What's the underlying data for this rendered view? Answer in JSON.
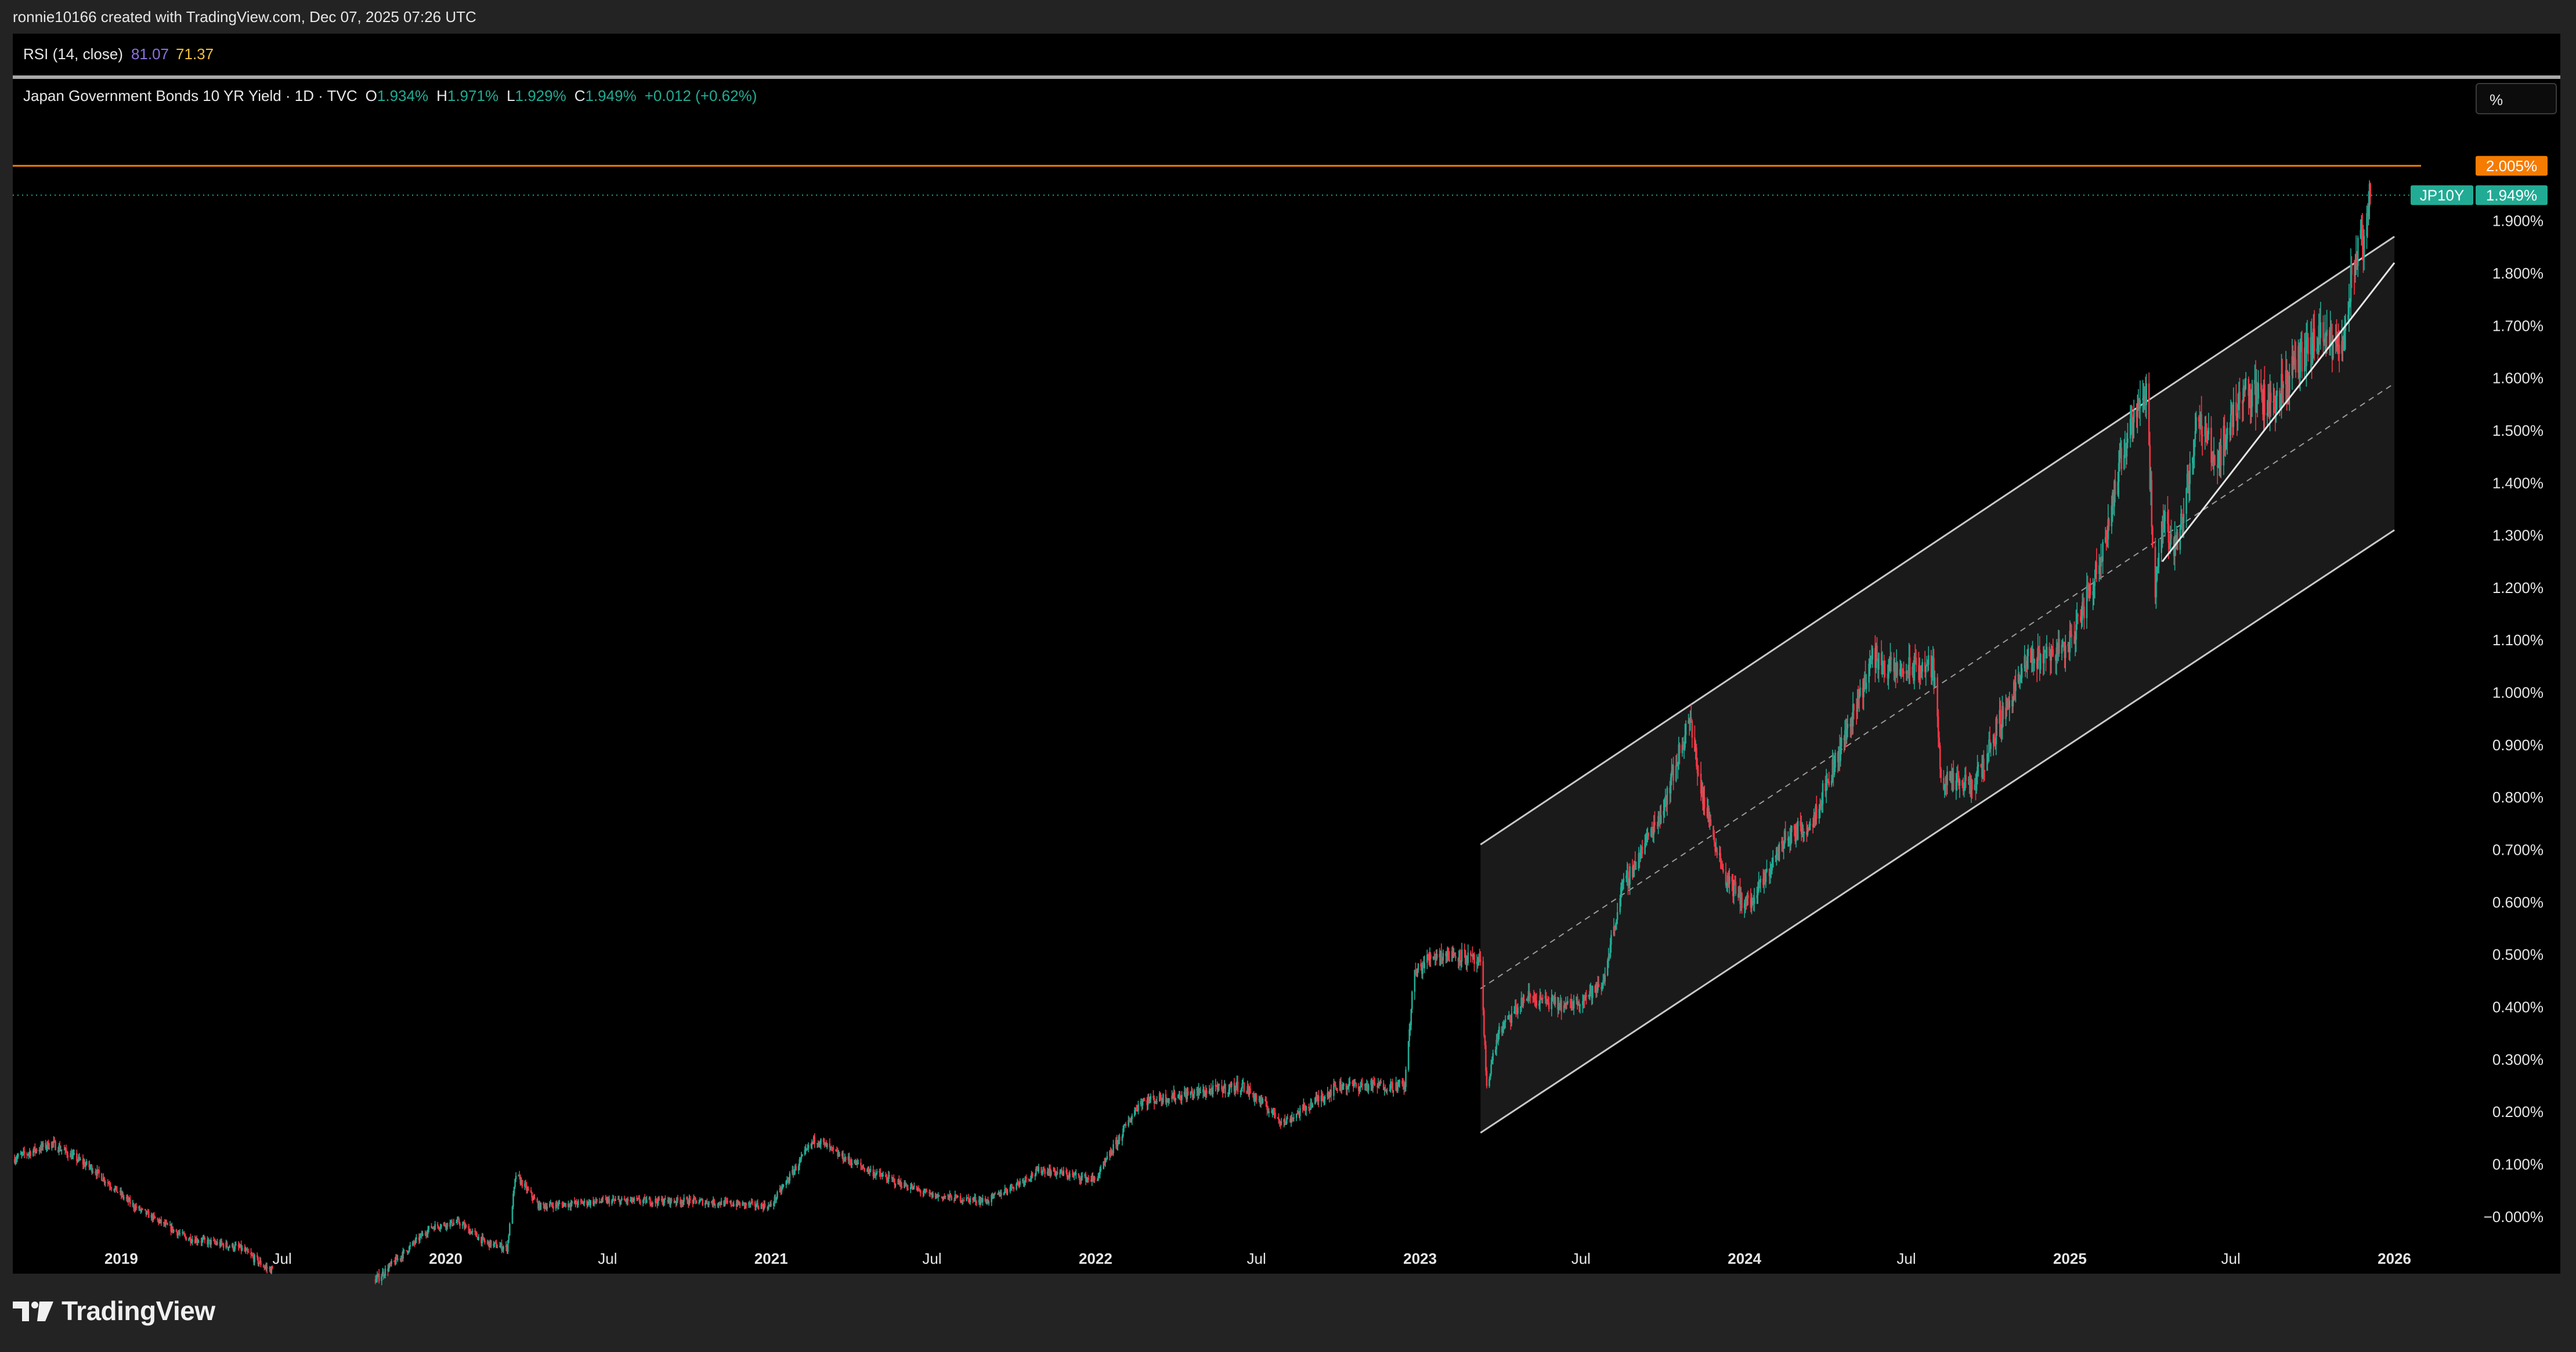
{
  "header": {
    "attribution": "ronnie10166 created with TradingView.com, Dec 07, 2025 07:26 UTC"
  },
  "rsi": {
    "label": "RSI (14, close)",
    "value": "81.07",
    "ma_value": "71.37"
  },
  "legend": {
    "title": "Japan Government Bonds 10 YR Yield · 1D · TVC",
    "o_label": "O",
    "o": "1.934%",
    "h_label": "H",
    "h": "1.971%",
    "l_label": "L",
    "l": "1.929%",
    "c_label": "C",
    "c": "1.949%",
    "change": "+0.012 (+0.62%)"
  },
  "scale_button": "%",
  "footer": {
    "brand": "TradingView"
  },
  "colors": {
    "up": "#22ab94",
    "down": "#f23645",
    "background": "#000000",
    "frame": "#232323",
    "channel_fill": "#1a1a1a",
    "channel_line": "#c9c9c9",
    "level_line": "#f57c00",
    "last_price": "#22ab94",
    "rsi": "#8c72e0",
    "rsi_ma": "#f3c140"
  },
  "chart_data": {
    "type": "candlestick",
    "symbol": "JP10Y",
    "interval": "1D",
    "yaxis": {
      "unit": "%",
      "ylim": [
        -0.07,
        2.1
      ],
      "ticks": [
        "−0.000%",
        "0.100%",
        "0.200%",
        "0.300%",
        "0.400%",
        "0.500%",
        "0.600%",
        "0.700%",
        "0.800%",
        "0.900%",
        "1.000%",
        "1.100%",
        "1.200%",
        "1.300%",
        "1.400%",
        "1.500%",
        "1.600%",
        "1.700%",
        "1.800%",
        "1.900%"
      ]
    },
    "xaxis": {
      "xlim": [
        "2018-09-01",
        "2026-01-31"
      ],
      "ticks": [
        {
          "date": "2019-01-01",
          "label": "2019",
          "bold": true
        },
        {
          "date": "2019-07-01",
          "label": "Jul",
          "bold": false
        },
        {
          "date": "2020-01-01",
          "label": "2020",
          "bold": true
        },
        {
          "date": "2020-07-01",
          "label": "Jul",
          "bold": false
        },
        {
          "date": "2021-01-01",
          "label": "2021",
          "bold": true
        },
        {
          "date": "2021-07-01",
          "label": "Jul",
          "bold": false
        },
        {
          "date": "2022-01-01",
          "label": "2022",
          "bold": true
        },
        {
          "date": "2022-07-01",
          "label": "Jul",
          "bold": false
        },
        {
          "date": "2023-01-01",
          "label": "2023",
          "bold": true
        },
        {
          "date": "2023-07-01",
          "label": "Jul",
          "bold": false
        },
        {
          "date": "2024-01-01",
          "label": "2024",
          "bold": true
        },
        {
          "date": "2024-07-01",
          "label": "Jul",
          "bold": false
        },
        {
          "date": "2025-01-01",
          "label": "2025",
          "bold": true
        },
        {
          "date": "2025-07-01",
          "label": "Jul",
          "bold": false
        },
        {
          "date": "2026-01-01",
          "label": "2026",
          "bold": true
        }
      ]
    },
    "series": [
      {
        "name": "JP10Y",
        "points": [
          [
            "2018-09-01",
            0.11
          ],
          [
            "2018-10-15",
            0.14
          ],
          [
            "2018-12-01",
            0.09
          ],
          [
            "2019-01-15",
            0.02
          ],
          [
            "2019-03-15",
            -0.04
          ],
          [
            "2019-05-15",
            -0.06
          ],
          [
            "2019-06-15",
            -0.1
          ],
          [
            "2019-10-15",
            -0.12
          ],
          [
            "2019-12-15",
            -0.02
          ],
          [
            "2020-01-15",
            -0.01
          ],
          [
            "2020-02-15",
            -0.05
          ],
          [
            "2020-03-10",
            -0.06
          ],
          [
            "2020-03-20",
            0.08
          ],
          [
            "2020-04-15",
            0.02
          ],
          [
            "2020-07-01",
            0.03
          ],
          [
            "2020-10-01",
            0.03
          ],
          [
            "2020-12-31",
            0.02
          ],
          [
            "2021-02-20",
            0.15
          ],
          [
            "2021-03-15",
            0.12
          ],
          [
            "2021-05-01",
            0.08
          ],
          [
            "2021-07-01",
            0.04
          ],
          [
            "2021-09-01",
            0.03
          ],
          [
            "2021-11-01",
            0.09
          ],
          [
            "2022-01-01",
            0.07
          ],
          [
            "2022-02-20",
            0.22
          ],
          [
            "2022-04-01",
            0.23
          ],
          [
            "2022-06-15",
            0.25
          ],
          [
            "2022-08-01",
            0.18
          ],
          [
            "2022-10-01",
            0.25
          ],
          [
            "2022-12-15",
            0.25
          ],
          [
            "2022-12-25",
            0.46
          ],
          [
            "2023-01-15",
            0.5
          ],
          [
            "2023-02-15",
            0.5
          ],
          [
            "2023-03-10",
            0.48
          ],
          [
            "2023-03-17",
            0.25
          ],
          [
            "2023-03-30",
            0.35
          ],
          [
            "2023-05-01",
            0.42
          ],
          [
            "2023-06-15",
            0.4
          ],
          [
            "2023-07-25",
            0.44
          ],
          [
            "2023-08-15",
            0.62
          ],
          [
            "2023-10-01",
            0.78
          ],
          [
            "2023-10-31",
            0.95
          ],
          [
            "2023-11-15",
            0.8
          ],
          [
            "2023-12-10",
            0.65
          ],
          [
            "2023-12-31",
            0.6
          ],
          [
            "2024-01-10",
            0.6
          ],
          [
            "2024-02-15",
            0.72
          ],
          [
            "2024-03-15",
            0.75
          ],
          [
            "2024-04-15",
            0.88
          ],
          [
            "2024-05-25",
            1.07
          ],
          [
            "2024-06-15",
            1.04
          ],
          [
            "2024-07-31",
            1.05
          ],
          [
            "2024-08-10",
            0.83
          ],
          [
            "2024-09-15",
            0.82
          ],
          [
            "2024-10-15",
            0.95
          ],
          [
            "2024-11-15",
            1.06
          ],
          [
            "2024-12-31",
            1.09
          ],
          [
            "2025-01-31",
            1.23
          ],
          [
            "2025-03-10",
            1.52
          ],
          [
            "2025-03-28",
            1.58
          ],
          [
            "2025-04-07",
            1.17
          ],
          [
            "2025-04-15",
            1.33
          ],
          [
            "2025-05-01",
            1.28
          ],
          [
            "2025-05-25",
            1.52
          ],
          [
            "2025-06-15",
            1.44
          ],
          [
            "2025-07-15",
            1.58
          ],
          [
            "2025-08-15",
            1.55
          ],
          [
            "2025-09-15",
            1.63
          ],
          [
            "2025-10-10",
            1.68
          ],
          [
            "2025-10-31",
            1.65
          ],
          [
            "2025-11-15",
            1.8
          ],
          [
            "2025-12-01",
            1.88
          ],
          [
            "2025-12-05",
            1.949
          ]
        ]
      }
    ],
    "drawings": {
      "channel": {
        "start": "2023-03-10",
        "end": "2026-01-01",
        "lower_start": 0.16,
        "lower_end": 1.31,
        "upper_start": 0.71,
        "upper_end": 1.87
      },
      "trendline": {
        "start": "2025-04-15",
        "end": "2026-01-01",
        "from": 1.25,
        "to": 1.82
      },
      "horizontal_level": 2.005
    },
    "price_labels": [
      {
        "text": "2.005%",
        "value": 2.005,
        "color": "#f57c00",
        "prefix": ""
      },
      {
        "text": "1.949%",
        "value": 1.949,
        "color": "#22ab94",
        "prefix": "JP10Y"
      }
    ]
  }
}
